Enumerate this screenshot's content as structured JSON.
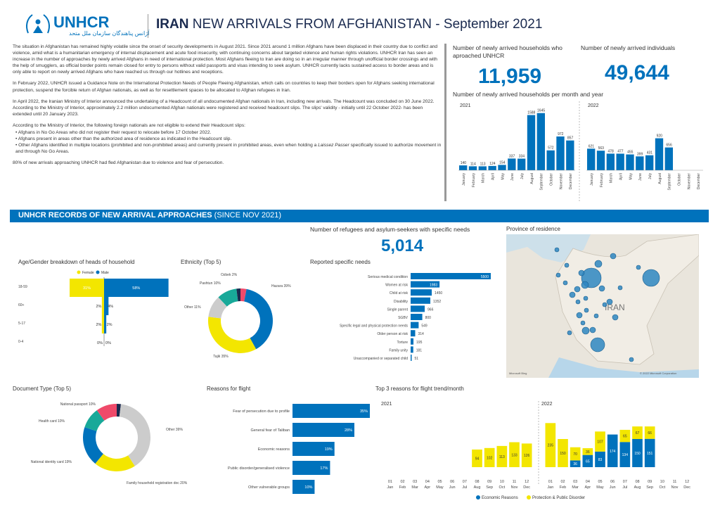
{
  "header": {
    "logo_text": "UNHCR",
    "logo_arabic": "آژانس پناهندگان سازمان ملل متحد",
    "title_bold": "IRAN",
    "title_rest": " NEW ARRIVALS FROM AFGHANISTAN - September 2021"
  },
  "intro": {
    "p1": "The situation in Afghanistan has remained highly volatile since the onset of security developments in August 2021. Since 2021 around 1 million Afghans have been displaced in their country due to conflict and violence, amid what is a humanitarian emergency of internal displacement and acute food insecurity, with continuing concerns about targeted violence and human rights violations. UNHCR Iran has seen an increase in the number of approaches by newly arrived Afghans in need of international protection. Most Afghans fleeing to Iran are doing so in an irregular manner through unofficial border crossings and with the help of smugglers, as official border points remain closed for entry to persons without valid passports and visas intending to seek asylum. UNHCR currently lacks sustained access to border areas and is only able to report on newly arrived Afghans who have reached us through our hotlines and receptions.",
    "p2": "In February 2022, UNHCR issued a Guidance Note on the International Protection Needs of People Fleeing Afghanistan, which calls on countries to keep their borders open for Afghans seeking international protection, suspend the forcible return of Afghan nationals, as well as for resettlement spaces to be allocated to Afghan refugees in Iran.",
    "p3": "In April 2022, the Iranian Ministry of Interior announced the undertaking of a Headcount of all undocumented Afghan nationals in Iran, including new arrivals. The Headcount was concluded on 30 June 2022. According to the Ministry of Interior, approximately 2.2 million undocumented Afghan nationals were registered and received headcount slips. The slips' validity - initially until 22 October 2022- has been extended until 20 January 2023.",
    "p4": "According to the Ministry of Interior, the following foreign nationals are not eligible to extend their Headcount slips:",
    "b1": "Afghans in No Go Areas who did not register their request to relocate before 17 October 2022.",
    "b2": "Afghans present in areas other than the authorized area of residence as indicated in the Headcount slip.",
    "b3a": "Other Afghans identified in multiple locations (prohibited and non-prohibited areas) and currently present in prohibited areas, even when holding a ",
    "b3i": "Laissez Passer",
    "b3b": " specifically issued to authorize movement in and through No Go Areas.",
    "p5": "80% of new arrivals approaching UNHCR had fled Afghanistan due to violence and fear of persecution."
  },
  "kpis": {
    "households_label": "Number of newly arrived households who aproached UNHCR",
    "households_value": "11,959",
    "individuals_label": "Number of newly arrived individuals",
    "individuals_value": "49,644",
    "specific_label": "Number of refugees and asylum-seekers with specific needs",
    "specific_value": "5,014"
  },
  "section_title_bold": "UNHCR RECORDS OF NEW ARRIVAL APPROACHES",
  "section_title_rest": " (SINCE NOV 2021)",
  "chart_data": [
    {
      "id": "monthly",
      "type": "bar",
      "title": "Number of newly arrived households per month and year",
      "months": [
        "January",
        "February",
        "March",
        "April",
        "May",
        "June",
        "July",
        "August",
        "September",
        "October",
        "November",
        "December"
      ],
      "series": [
        {
          "name": "2021",
          "values": [
            140,
            114,
            113,
            124,
            154,
            337,
            334,
            1588,
            1645,
            572,
            972,
            857
          ]
        },
        {
          "name": "2022",
          "values": [
            621,
            563,
            478,
            477,
            455,
            399,
            431,
            920,
            656,
            null,
            null,
            null
          ]
        }
      ],
      "color": "#0072bc"
    },
    {
      "id": "agegender",
      "type": "bar",
      "title": "Age/Gender breakdown of heads of household",
      "legend": [
        "Female",
        "Male"
      ],
      "categories": [
        "18-59",
        "60+",
        "5-17",
        "0-4"
      ],
      "series": [
        {
          "name": "Female",
          "values": [
            31,
            2,
            2,
            0
          ],
          "labels": [
            "31%",
            "2%",
            "2%",
            "0%"
          ]
        },
        {
          "name": "Male",
          "values": [
            58,
            4,
            2,
            0
          ],
          "labels": [
            "58%",
            "4%",
            "2%",
            "0%"
          ]
        }
      ],
      "colors": {
        "Female": "#f3e600",
        "Male": "#0072bc"
      }
    },
    {
      "id": "ethnicity",
      "type": "pie",
      "title": "Ethnicity (Top 5)",
      "slices": [
        {
          "label": "Hazara 39%",
          "value": 39,
          "color": "#0072bc"
        },
        {
          "label": "Tajik 35%",
          "value": 35,
          "color": "#f3e600"
        },
        {
          "label": "Other 11%",
          "value": 11,
          "color": "#cccccc"
        },
        {
          "label": "Pashtun 10%",
          "value": 10,
          "color": "#18a999"
        },
        {
          "label": "Ozbek 2%",
          "value": 2,
          "color": "#1a2a4f"
        },
        {
          "label": "",
          "value": 3,
          "color": "#ef4a6a"
        }
      ]
    },
    {
      "id": "specific",
      "type": "bar",
      "title": "Reported specific needs",
      "categories": [
        "Serious medical condition",
        "Women at risk",
        "Child at risk",
        "Disability",
        "Single parent",
        "SGBV",
        "Specific legal and physical protection needs",
        "Older person at risk",
        "Torture",
        "Family unity",
        "Unaccompanied or separated child"
      ],
      "values": [
        5500,
        1983,
        1450,
        1352,
        966,
        800,
        549,
        314,
        195,
        181,
        51
      ],
      "color": "#0072bc"
    },
    {
      "id": "document",
      "type": "pie",
      "title": "Document Type (Top 5)",
      "slices": [
        {
          "label": "Other 39%",
          "value": 39,
          "color": "#cccccc"
        },
        {
          "label": "Family household registration doc 20%",
          "value": 20,
          "color": "#f3e600"
        },
        {
          "label": "National identity card 19%",
          "value": 19,
          "color": "#0072bc"
        },
        {
          "label": "Health card 10%",
          "value": 10,
          "color": "#18a999"
        },
        {
          "label": "National passport 10%",
          "value": 10,
          "color": "#ef4a6a"
        },
        {
          "label": "",
          "value": 2,
          "color": "#1a2a4f"
        }
      ]
    },
    {
      "id": "reasons",
      "type": "bar",
      "title": "Reasons for flight",
      "categories": [
        "Fear of persecution due to profile",
        "General fear of Taliban",
        "Economic reasons",
        "Public disorder/generalised violence",
        "Other vulnerable groups"
      ],
      "values": [
        35,
        28,
        19,
        17,
        10
      ],
      "labels": [
        "35%",
        "28%",
        "19%",
        "17%",
        "10%"
      ],
      "color": "#0072bc"
    },
    {
      "id": "trend",
      "type": "bar",
      "title": "Top 3 reasons for flight trend/month",
      "months_num": [
        "01",
        "02",
        "03",
        "04",
        "05",
        "06",
        "07",
        "08",
        "09",
        "10",
        "11",
        "12"
      ],
      "months_abbr": [
        "Jan",
        "Feb",
        "Mar",
        "Apr",
        "May",
        "Jun",
        "Jul",
        "Aug",
        "Sep",
        "Oct",
        "Nov",
        "Dec"
      ],
      "legend": [
        "Economic Reasons",
        "Protection & Public Disorder"
      ],
      "y2021": {
        "label": "2021",
        "economic": [
          null,
          null,
          null,
          null,
          null,
          null,
          null,
          null,
          null,
          null,
          null,
          null
        ],
        "protection": [
          null,
          null,
          null,
          null,
          null,
          null,
          null,
          94,
          102,
          113,
          133,
          126
        ]
      },
      "y2022": {
        "label": "2022",
        "economic": [
          null,
          null,
          36,
          65,
          83,
          174,
          134,
          150,
          151,
          null,
          null,
          null
        ],
        "protection": [
          235,
          150,
          70,
          36,
          107,
          null,
          65,
          67,
          66,
          null,
          null,
          null
        ],
        "econ_labels": [
          "",
          "",
          "36",
          "65",
          "83",
          "174",
          "134",
          "150",
          "151",
          "",
          "",
          ""
        ],
        "prot_labels": [
          "235",
          "150",
          "70",
          "36",
          "107",
          "",
          "65",
          "67",
          "66",
          "",
          "",
          ""
        ]
      },
      "colors": {
        "economic": "#0072bc",
        "protection": "#f3e600"
      }
    }
  ],
  "labels": {
    "monthly_2021": "2021",
    "monthly_2022": "2022",
    "province_title": "Province of residence",
    "map_country": "IRAN",
    "map_credit": "© 2022 Microsoft Corporation",
    "map_brand": "Microsoft Bing"
  }
}
